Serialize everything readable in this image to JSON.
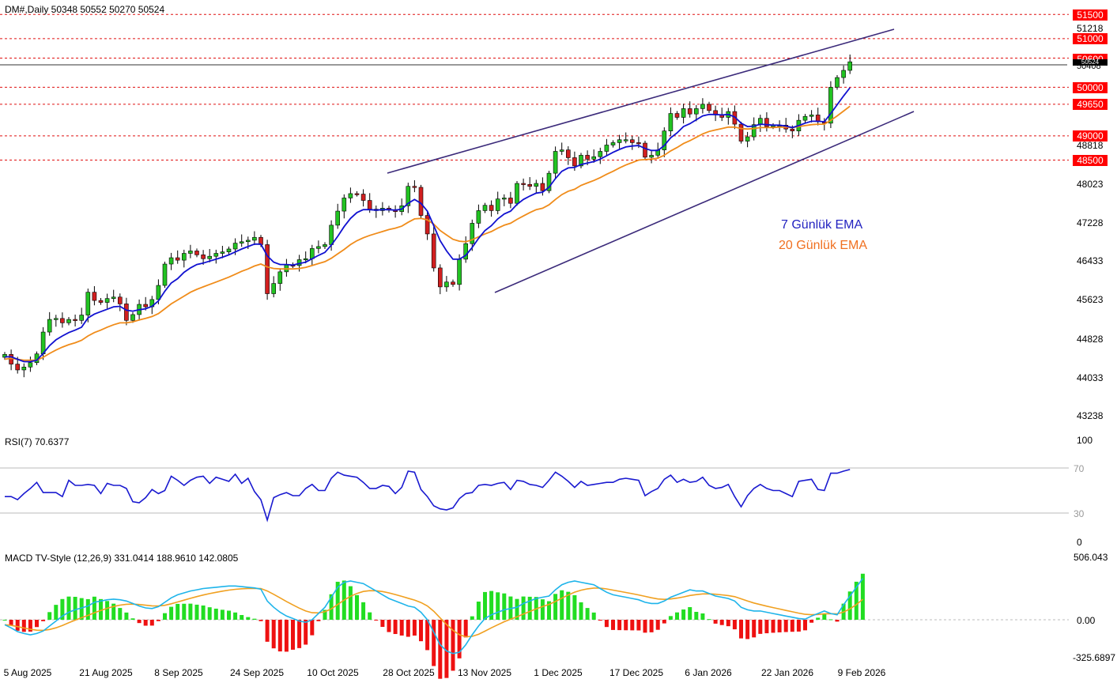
{
  "header": {
    "price_info": "DM#,Daily  50348 50552 50270 50524",
    "rsi_info": "RSI(7) 70.6377",
    "macd_info": "MACD TV-Style (12,26,9) 331.0414 188.9610 142.0805"
  },
  "price_axis": {
    "ticks": [
      "51218",
      "48818",
      "48023",
      "47228",
      "46433",
      "45623",
      "44828",
      "44033",
      "43238"
    ],
    "levels": [
      "51500",
      "51000",
      "50600",
      "50000",
      "49650",
      "49000",
      "48500"
    ],
    "current_marker": "50524",
    "partial_tick": "50408"
  },
  "rsi_axis": {
    "ticks": [
      "100",
      "70",
      "30",
      "0"
    ]
  },
  "macd_axis": {
    "ticks": [
      "506.043",
      "0.00",
      "-325.6897"
    ]
  },
  "x_axis": {
    "labels": [
      "5 Aug 2025",
      "21 Aug 2025",
      "8 Sep 2025",
      "24 Sep 2025",
      "10 Oct 2025",
      "28 Oct 2025",
      "13 Nov 2025",
      "1 Dec 2025",
      "17 Dec 2025",
      "6 Jan 2026",
      "22 Jan 2026",
      "9 Feb 2026"
    ]
  },
  "legend": {
    "ema7": "7 Günlük EMA",
    "ema20": "20 Günlük EMA"
  },
  "colors": {
    "bull": "#22c322",
    "bear": "#d11f1f",
    "ema7": "#1010d0",
    "ema20": "#f08c1a",
    "channel": "#3b2a7a",
    "level": "#e01010",
    "macd": "#1eb4ea",
    "signal": "#f0a020",
    "hist_pos": "#22dd22",
    "hist_neg": "#ee1111"
  },
  "chart_data": {
    "type": "candlestick",
    "price_range": [
      43000,
      51800
    ],
    "closes": [
      44500,
      44300,
      44180,
      44240,
      44330,
      44510,
      44960,
      45220,
      45240,
      45150,
      45220,
      45200,
      45310,
      45780,
      45610,
      45570,
      45650,
      45680,
      45540,
      45200,
      45320,
      45530,
      45480,
      45630,
      45920,
      46360,
      46490,
      46440,
      46580,
      46630,
      46550,
      46470,
      46520,
      46580,
      46610,
      46670,
      46790,
      46820,
      46850,
      46910,
      46760,
      45750,
      45960,
      46200,
      46340,
      46330,
      46450,
      46470,
      46680,
      46720,
      46760,
      47160,
      47450,
      47720,
      47810,
      47800,
      47670,
      47490,
      47460,
      47510,
      47470,
      47440,
      47560,
      47960,
      47940,
      47360,
      46980,
      46280,
      45890,
      45990,
      45940,
      46460,
      46780,
      47200,
      47460,
      47570,
      47460,
      47700,
      47720,
      47610,
      48020,
      48000,
      47960,
      48020,
      47870,
      48230,
      48680,
      48710,
      48550,
      48380,
      48600,
      48520,
      48570,
      48680,
      48810,
      48860,
      48920,
      48920,
      48860,
      48850,
      48560,
      48600,
      48710,
      49100,
      49460,
      49380,
      49560,
      49450,
      49560,
      49650,
      49520,
      49430,
      49380,
      49500,
      49240,
      48890,
      48980,
      49230,
      49360,
      49190,
      49210,
      49220,
      49140,
      49100,
      49320,
      49400,
      49430,
      49290,
      49260,
      50000,
      50200,
      50348,
      50524
    ],
    "ema7": [
      44450,
      44450,
      44400,
      44350,
      44350,
      44380,
      44520,
      44680,
      44800,
      44880,
      44950,
      45000,
      45060,
      45250,
      45330,
      45380,
      45430,
      45480,
      45490,
      45410,
      45390,
      45420,
      45440,
      45490,
      45600,
      45800,
      45970,
      46060,
      46190,
      46280,
      46350,
      46380,
      46420,
      46460,
      46500,
      46550,
      46610,
      46670,
      46720,
      46770,
      46770,
      46530,
      46400,
      46350,
      46350,
      46340,
      46370,
      46400,
      46470,
      46540,
      46600,
      46750,
      46930,
      47130,
      47300,
      47420,
      47480,
      47480,
      47470,
      47480,
      47480,
      47470,
      47490,
      47610,
      47690,
      47610,
      47450,
      47150,
      46840,
      46630,
      46460,
      46460,
      46540,
      46700,
      46890,
      47050,
      47150,
      47290,
      47390,
      47450,
      47590,
      47690,
      47760,
      47820,
      47840,
      47940,
      48120,
      48270,
      48340,
      48350,
      48410,
      48440,
      48470,
      48520,
      48590,
      48660,
      48720,
      48770,
      48790,
      48800,
      48740,
      48700,
      48700,
      48800,
      48960,
      49060,
      49190,
      49250,
      49330,
      49410,
      49440,
      49440,
      49430,
      49440,
      49390,
      49260,
      49190,
      49200,
      49240,
      49230,
      49220,
      49220,
      49200,
      49170,
      49210,
      49260,
      49300,
      49300,
      49290,
      49460,
      49640,
      49820,
      49990
    ],
    "ema20": [
      44400,
      44420,
      44400,
      44380,
      44380,
      44380,
      44440,
      44520,
      44590,
      44650,
      44700,
      44740,
      44790,
      44880,
      44950,
      45000,
      45060,
      45110,
      45150,
      45150,
      45170,
      45210,
      45240,
      45280,
      45340,
      45440,
      45540,
      45620,
      45700,
      45780,
      45840,
      45890,
      45940,
      45990,
      46040,
      46090,
      46150,
      46210,
      46260,
      46320,
      46360,
      46300,
      46270,
      46260,
      46260,
      46260,
      46270,
      46290,
      46330,
      46370,
      46410,
      46480,
      46570,
      46660,
      46760,
      46840,
      46900,
      46950,
      46990,
      47030,
      47070,
      47100,
      47140,
      47220,
      47290,
      47300,
      47270,
      47180,
      47050,
      46960,
      46870,
      46830,
      46820,
      46860,
      46920,
      46980,
      47030,
      47100,
      47160,
      47200,
      47280,
      47350,
      47420,
      47480,
      47510,
      47580,
      47690,
      47790,
      47860,
      47900,
      47980,
      48030,
      48080,
      48140,
      48210,
      48270,
      48340,
      48400,
      48450,
      48500,
      48510,
      48520,
      48540,
      48600,
      48690,
      48760,
      48840,
      48900,
      48970,
      49040,
      49090,
      49120,
      49150,
      49180,
      49180,
      49150,
      49140,
      49150,
      49170,
      49170,
      49170,
      49180,
      49180,
      49170,
      49190,
      49210,
      49230,
      49240,
      49240,
      49320,
      49410,
      49510,
      49610
    ],
    "rsi": [
      44,
      44,
      41,
      47,
      52,
      58,
      48,
      48,
      48,
      44,
      60,
      55,
      55,
      56,
      55,
      47,
      57,
      55,
      55,
      52,
      39,
      38,
      43,
      51,
      47,
      50,
      64,
      60,
      55,
      60,
      63,
      64,
      57,
      63,
      61,
      59,
      66,
      57,
      62,
      49,
      41,
      21,
      43,
      46,
      48,
      45,
      45,
      52,
      56,
      50,
      50,
      62,
      68,
      65,
      64,
      63,
      58,
      52,
      52,
      55,
      54,
      47,
      53,
      69,
      68,
      51,
      44,
      35,
      32,
      31,
      33,
      42,
      47,
      48,
      55,
      56,
      55,
      57,
      58,
      51,
      60,
      59,
      56,
      55,
      53,
      60,
      68,
      64,
      59,
      53,
      59,
      55,
      56,
      57,
      58,
      58,
      61,
      62,
      61,
      60,
      45,
      49,
      52,
      61,
      65,
      58,
      61,
      58,
      59,
      63,
      55,
      52,
      53,
      56,
      44,
      34,
      45,
      52,
      56,
      52,
      50,
      50,
      47,
      44,
      59,
      60,
      61,
      51,
      50,
      67,
      67,
      69,
      70.6
    ],
    "macd": [
      -40,
      -65,
      -95,
      -110,
      -120,
      -110,
      -90,
      -50,
      -10,
      30,
      60,
      80,
      95,
      110,
      140,
      150,
      160,
      165,
      160,
      150,
      130,
      110,
      95,
      90,
      105,
      140,
      175,
      200,
      215,
      230,
      240,
      250,
      255,
      260,
      265,
      270,
      270,
      265,
      260,
      255,
      245,
      150,
      100,
      60,
      30,
      10,
      -10,
      -20,
      0,
      50,
      100,
      180,
      260,
      300,
      310,
      300,
      290,
      260,
      230,
      200,
      170,
      150,
      130,
      110,
      100,
      60,
      0,
      -100,
      -200,
      -250,
      -270,
      -260,
      -200,
      -120,
      -50,
      10,
      40,
      60,
      80,
      90,
      100,
      130,
      150,
      170,
      180,
      190,
      240,
      280,
      300,
      310,
      300,
      290,
      280,
      250,
      220,
      200,
      190,
      180,
      170,
      160,
      140,
      130,
      130,
      150,
      180,
      200,
      220,
      240,
      230,
      230,
      210,
      190,
      180,
      170,
      150,
      100,
      80,
      70,
      70,
      60,
      50,
      40,
      30,
      20,
      10,
      5,
      30,
      50,
      70,
      50,
      40,
      120,
      190,
      260,
      331
    ]
  }
}
